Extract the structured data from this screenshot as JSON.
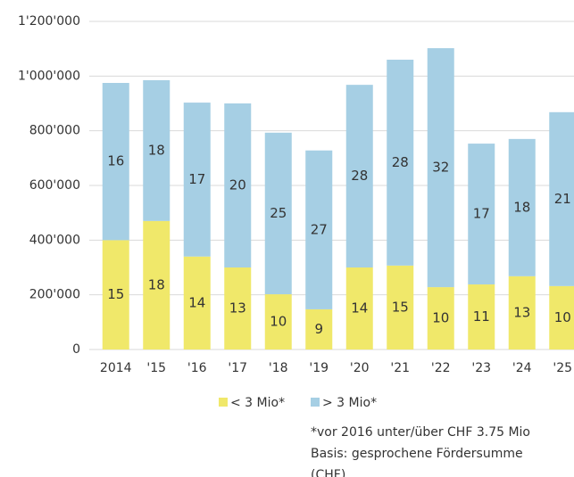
{
  "chart_data": {
    "type": "stacked_bar",
    "categories": [
      "2014",
      "'15",
      "'16",
      "'17",
      "'18",
      "'19",
      "'20",
      "'21",
      "'22",
      "'23",
      "'24",
      "'25"
    ],
    "series": [
      {
        "name": "< 3 Mio*",
        "color": "#f0e86a",
        "values": [
          400000,
          470000,
          340000,
          300000,
          202000,
          147000,
          300000,
          307000,
          228000,
          238000,
          268000,
          232000
        ],
        "counts": [
          15,
          18,
          14,
          13,
          10,
          9,
          14,
          15,
          10,
          11,
          13,
          10
        ]
      },
      {
        "name": "> 3 Mio*",
        "color": "#a6cfe4",
        "values": [
          575000,
          515000,
          563000,
          600000,
          591000,
          581000,
          668000,
          753000,
          874000,
          515000,
          502000,
          636000
        ],
        "counts": [
          16,
          18,
          17,
          20,
          25,
          27,
          28,
          28,
          32,
          17,
          18,
          21
        ]
      }
    ],
    "ylim": [
      0,
      1200000
    ],
    "yticks": [
      0,
      {
        "value": 200000,
        "label": "200'000"
      },
      {
        "value": 400000,
        "label": "400'000"
      },
      {
        "value": 600000,
        "label": "600'000"
      },
      {
        "value": 800000,
        "label": "800'000"
      },
      {
        "value": 1000000,
        "label": "1'000'000"
      },
      {
        "value": 1200000,
        "label": "1'200'000"
      }
    ],
    "grid": true,
    "legend": "bottom",
    "footnotes": [
      "*vor 2016 unter/über CHF 3.75 Mio",
      "Basis: gesprochene Fördersumme",
      "(CHF)"
    ]
  }
}
